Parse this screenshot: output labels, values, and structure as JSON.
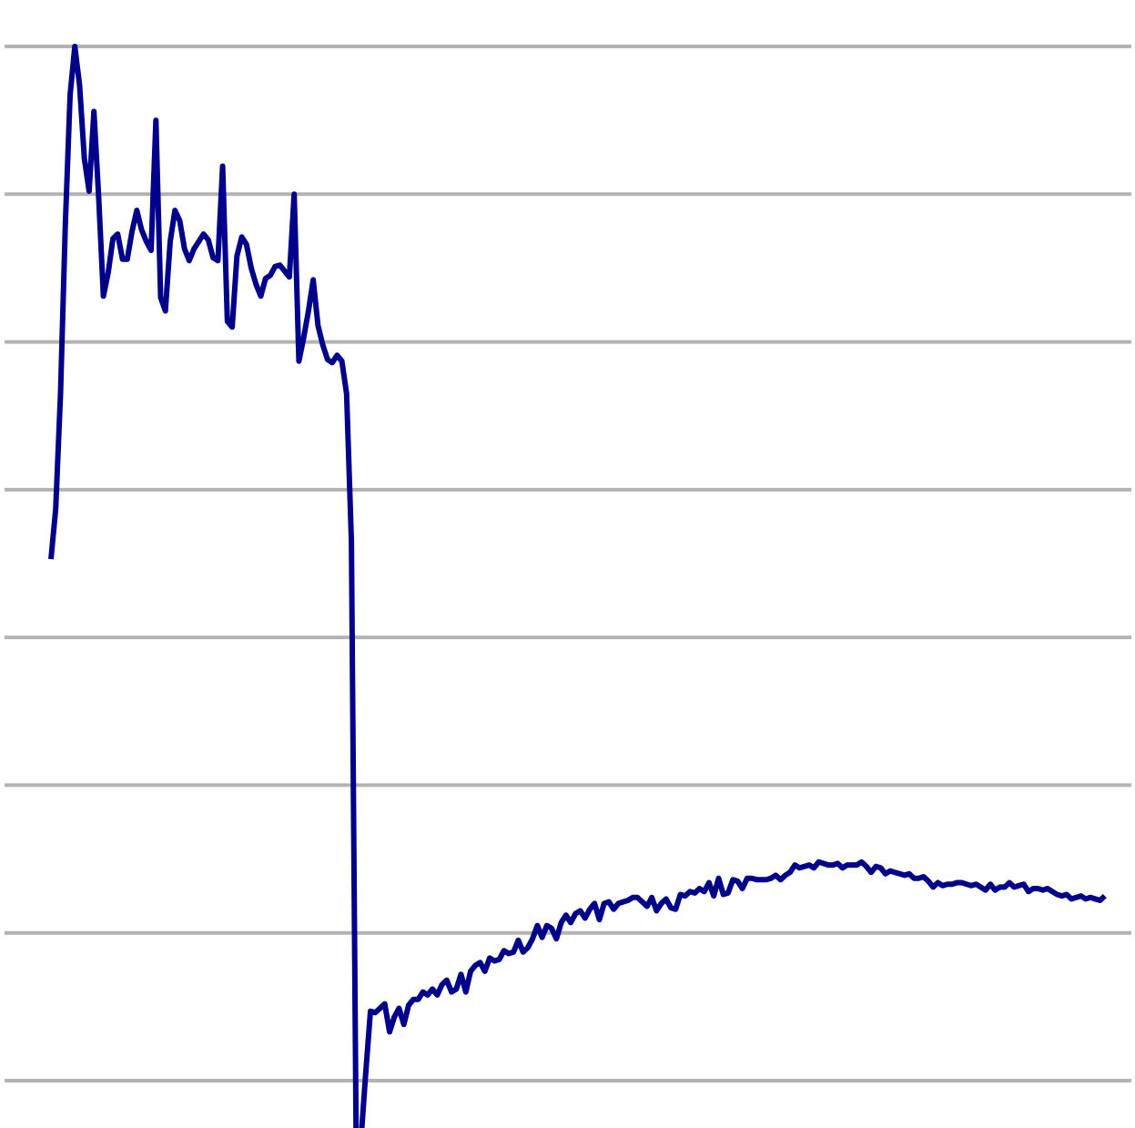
{
  "chart_data": {
    "type": "line",
    "title": "",
    "xlabel": "",
    "ylabel": "",
    "grid": true,
    "legend": "none",
    "x_range": [
      0,
      226
    ],
    "ylim": [
      0,
      7
    ],
    "gridlines_y": [
      0,
      1,
      2,
      3,
      4,
      5,
      6,
      7
    ],
    "colors": {
      "series": "#00008b",
      "grid": "#b3b3b3",
      "background": "#ffffff"
    },
    "series": [
      {
        "values": [
          3.53,
          3.87,
          4.65,
          5.78,
          6.67,
          7.0,
          6.74,
          6.24,
          6.02,
          6.56,
          5.98,
          5.31,
          5.47,
          5.7,
          5.73,
          5.56,
          5.56,
          5.75,
          5.89,
          5.76,
          5.68,
          5.62,
          6.5,
          5.3,
          5.21,
          5.68,
          5.89,
          5.82,
          5.63,
          5.55,
          5.63,
          5.68,
          5.73,
          5.69,
          5.57,
          5.55,
          6.19,
          5.14,
          5.1,
          5.58,
          5.71,
          5.66,
          5.5,
          5.39,
          5.31,
          5.43,
          5.45,
          5.51,
          5.52,
          5.48,
          5.44,
          6.0,
          4.87,
          5.03,
          5.21,
          5.42,
          5.11,
          4.98,
          4.88,
          4.86,
          4.91,
          4.87,
          4.65,
          3.65,
          -0.41,
          -0.41,
          0.05,
          0.47,
          0.46,
          0.49,
          0.52,
          0.33,
          0.43,
          0.49,
          0.38,
          0.51,
          0.55,
          0.55,
          0.6,
          0.58,
          0.62,
          0.58,
          0.65,
          0.68,
          0.6,
          0.62,
          0.72,
          0.6,
          0.74,
          0.78,
          0.8,
          0.74,
          0.83,
          0.81,
          0.82,
          0.88,
          0.86,
          0.87,
          0.95,
          0.87,
          0.9,
          0.96,
          1.05,
          0.97,
          1.05,
          1.03,
          0.96,
          1.07,
          1.12,
          1.07,
          1.13,
          1.15,
          1.1,
          1.16,
          1.2,
          1.09,
          1.2,
          1.21,
          1.16,
          1.2,
          1.21,
          1.22,
          1.24,
          1.24,
          1.21,
          1.18,
          1.24,
          1.15,
          1.2,
          1.23,
          1.17,
          1.16,
          1.26,
          1.25,
          1.28,
          1.27,
          1.3,
          1.28,
          1.34,
          1.25,
          1.37,
          1.26,
          1.27,
          1.36,
          1.35,
          1.3,
          1.37,
          1.37,
          1.36,
          1.36,
          1.36,
          1.37,
          1.39,
          1.36,
          1.39,
          1.41,
          1.46,
          1.44,
          1.45,
          1.46,
          1.44,
          1.48,
          1.47,
          1.46,
          1.46,
          1.47,
          1.44,
          1.46,
          1.46,
          1.46,
          1.48,
          1.45,
          1.41,
          1.45,
          1.44,
          1.4,
          1.42,
          1.41,
          1.4,
          1.39,
          1.4,
          1.37,
          1.37,
          1.38,
          1.35,
          1.31,
          1.34,
          1.32,
          1.33,
          1.33,
          1.34,
          1.34,
          1.33,
          1.32,
          1.33,
          1.31,
          1.29,
          1.33,
          1.29,
          1.31,
          1.31,
          1.34,
          1.31,
          1.32,
          1.33,
          1.28,
          1.3,
          1.3,
          1.29,
          1.3,
          1.28,
          1.26,
          1.25,
          1.26,
          1.23,
          1.24,
          1.25,
          1.23,
          1.24,
          1.23,
          1.22,
          1.25
        ]
      }
    ]
  }
}
